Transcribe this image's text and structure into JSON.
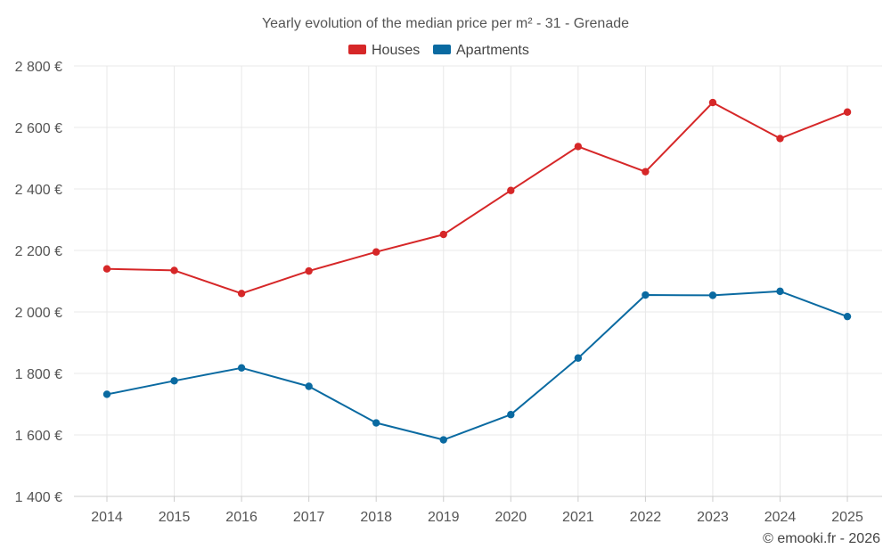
{
  "chart_data": {
    "type": "line",
    "title": "Yearly evolution of the median price per m² - 31 - Grenade",
    "categories": [
      "2014",
      "2015",
      "2016",
      "2017",
      "2018",
      "2019",
      "2020",
      "2021",
      "2022",
      "2023",
      "2024",
      "2025"
    ],
    "series": [
      {
        "name": "Houses",
        "color": "#d62728",
        "values": [
          2140,
          2135,
          2060,
          2133,
          2195,
          2252,
          2395,
          2538,
          2456,
          2681,
          2564,
          2650
        ]
      },
      {
        "name": "Apartments",
        "color": "#0a6aa1",
        "values": [
          1732,
          1776,
          1818,
          1758,
          1639,
          1584,
          1666,
          1850,
          2055,
          2054,
          2067,
          1985
        ]
      }
    ],
    "yticks": [
      1400,
      1600,
      1800,
      2000,
      2200,
      2400,
      2600,
      2800
    ],
    "ytick_labels": [
      "1 400 €",
      "1 600 €",
      "1 800 €",
      "2 000 €",
      "2 200 €",
      "2 400 €",
      "2 600 €",
      "2 800 €"
    ],
    "ylim": [
      1400,
      2800
    ],
    "xlabel": "",
    "ylabel": "",
    "legend_position": "top-center",
    "grid": true
  },
  "footer": {
    "copyright": "© emooki.fr - 2026"
  }
}
